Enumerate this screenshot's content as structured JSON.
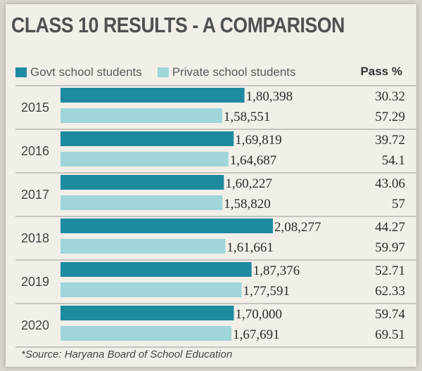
{
  "title": "CLASS 10 RESULTS - A COMPARISON",
  "legend": {
    "govt": "Govt school students",
    "private": "Private school students"
  },
  "pass_header": "Pass %",
  "source": "*Source: Haryana Board of School Education",
  "colors": {
    "govt": "#1e8aa0",
    "private": "#9fd6da"
  },
  "chart_data": {
    "type": "bar",
    "orientation": "horizontal",
    "categories": [
      "2015",
      "2016",
      "2017",
      "2018",
      "2019",
      "2020"
    ],
    "series": [
      {
        "name": "Govt school students",
        "values": [
          180398,
          169819,
          160227,
          208277,
          187376,
          170000
        ],
        "labels": [
          "1,80,398",
          "1,69,819",
          "1,60,227",
          "2,08,277",
          "1,87,376",
          "1,70,000"
        ],
        "pass": [
          "30.32",
          "39.72",
          "43.06",
          "44.27",
          "52.71",
          "59.74"
        ]
      },
      {
        "name": "Private school students",
        "values": [
          158551,
          164687,
          158820,
          161661,
          177591,
          167691
        ],
        "labels": [
          "1,58,551",
          "1,64,687",
          "1,58,820",
          "1,61,661",
          "1,77,591",
          "1,67,691"
        ],
        "pass": [
          "57.29",
          "54.1",
          "57",
          "59.97",
          "62.33",
          "69.51"
        ]
      }
    ]
  }
}
